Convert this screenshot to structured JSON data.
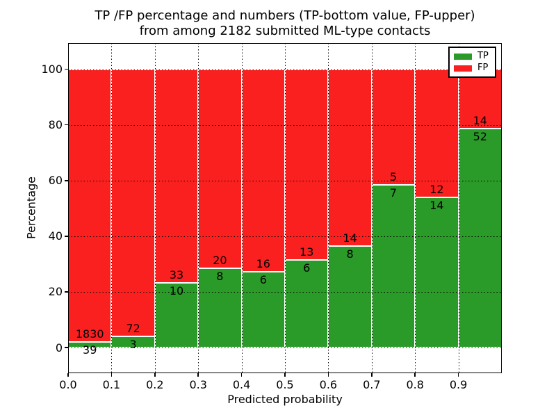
{
  "title": {
    "line1": "TP /FP percentage and numbers (TP-bottom value, FP-upper)",
    "line2": "from among 2182 submitted ML-type contacts"
  },
  "chart_data": {
    "type": "bar",
    "stacked": true,
    "normalized_to_percent": true,
    "title": "TP /FP percentage and numbers (TP-bottom value, FP-upper) from among 2182 submitted ML-type contacts",
    "xlabel": "Predicted probability",
    "ylabel": "Percentage",
    "total_contacts": 2182,
    "bins": [
      "0.0-0.1",
      "0.1-0.2",
      "0.2-0.3",
      "0.3-0.4",
      "0.4-0.5",
      "0.5-0.6",
      "0.6-0.7",
      "0.7-0.8",
      "0.8-0.9",
      "0.9-1.0"
    ],
    "bin_start": [
      0.0,
      0.1,
      0.2,
      0.3,
      0.4,
      0.5,
      0.6,
      0.7,
      0.8,
      0.9
    ],
    "bin_width": 0.1,
    "series": [
      {
        "name": "TP",
        "color": "#2a9a28",
        "counts": [
          39,
          3,
          10,
          8,
          6,
          6,
          8,
          7,
          14,
          52
        ]
      },
      {
        "name": "FP",
        "color": "#fb2020",
        "counts": [
          1830,
          72,
          33,
          20,
          16,
          13,
          14,
          5,
          12,
          14
        ]
      }
    ],
    "tp_percent": [
      2.09,
      4.0,
      23.26,
      28.57,
      27.27,
      31.58,
      36.36,
      58.33,
      53.85,
      78.79
    ],
    "xticks": {
      "values": [
        0.0,
        0.1,
        0.2,
        0.3,
        0.4,
        0.5,
        0.6,
        0.7,
        0.8,
        0.9
      ],
      "labels": [
        "0.0",
        "0.1",
        "0.2",
        "0.3",
        "0.4",
        "0.5",
        "0.6",
        "0.7",
        "0.8",
        "0.9"
      ]
    },
    "yticks": {
      "values": [
        0,
        20,
        40,
        60,
        80,
        100
      ],
      "labels": [
        "0",
        "20",
        "40",
        "60",
        "80",
        "100"
      ]
    },
    "xlim": [
      0.0,
      1.0
    ],
    "ylim": [
      -9.24,
      109.39
    ],
    "grid": true,
    "grid_style": "dotted",
    "legend": {
      "position": "upper right",
      "entries": [
        "TP",
        "FP"
      ]
    },
    "annotation_note": "FP count printed above green/red boundary, TP count printed below it"
  }
}
